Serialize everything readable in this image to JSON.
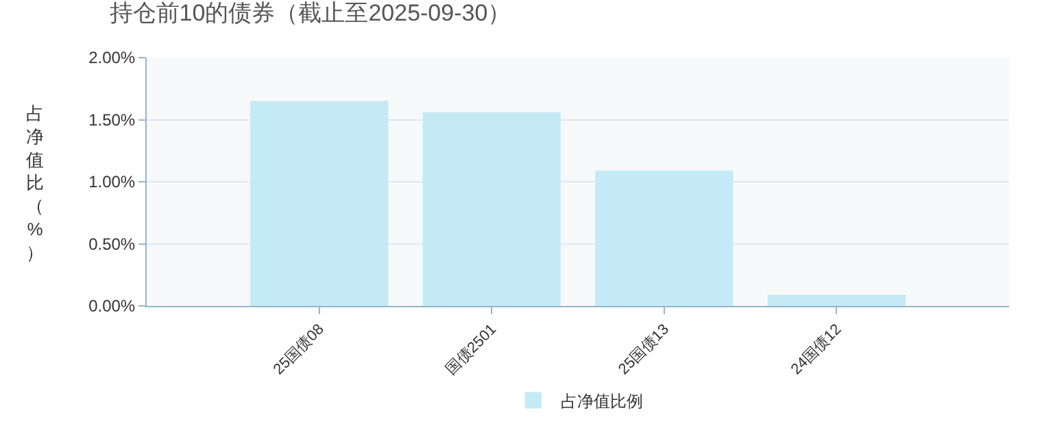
{
  "chart_data": {
    "type": "bar",
    "title": "持仓前10的债券（截止至2025-09-30）",
    "ylabel": "占净值比（%）",
    "categories": [
      "25国债08",
      "国债2501",
      "25国债13",
      "24国债12"
    ],
    "series": [
      {
        "name": "占净值比例",
        "color": "#c4eaf6",
        "values": [
          1.65,
          1.56,
          1.09,
          0.09
        ]
      }
    ],
    "ylim": [
      0,
      2
    ],
    "yticks": [
      {
        "value": 0,
        "label": "0.00%"
      },
      {
        "value": 0.5,
        "label": "0.50%"
      },
      {
        "value": 1,
        "label": "1.00%"
      },
      {
        "value": 1.5,
        "label": "1.50%"
      },
      {
        "value": 2,
        "label": "2.00%"
      }
    ],
    "grid": "y",
    "legend": "bottom"
  }
}
